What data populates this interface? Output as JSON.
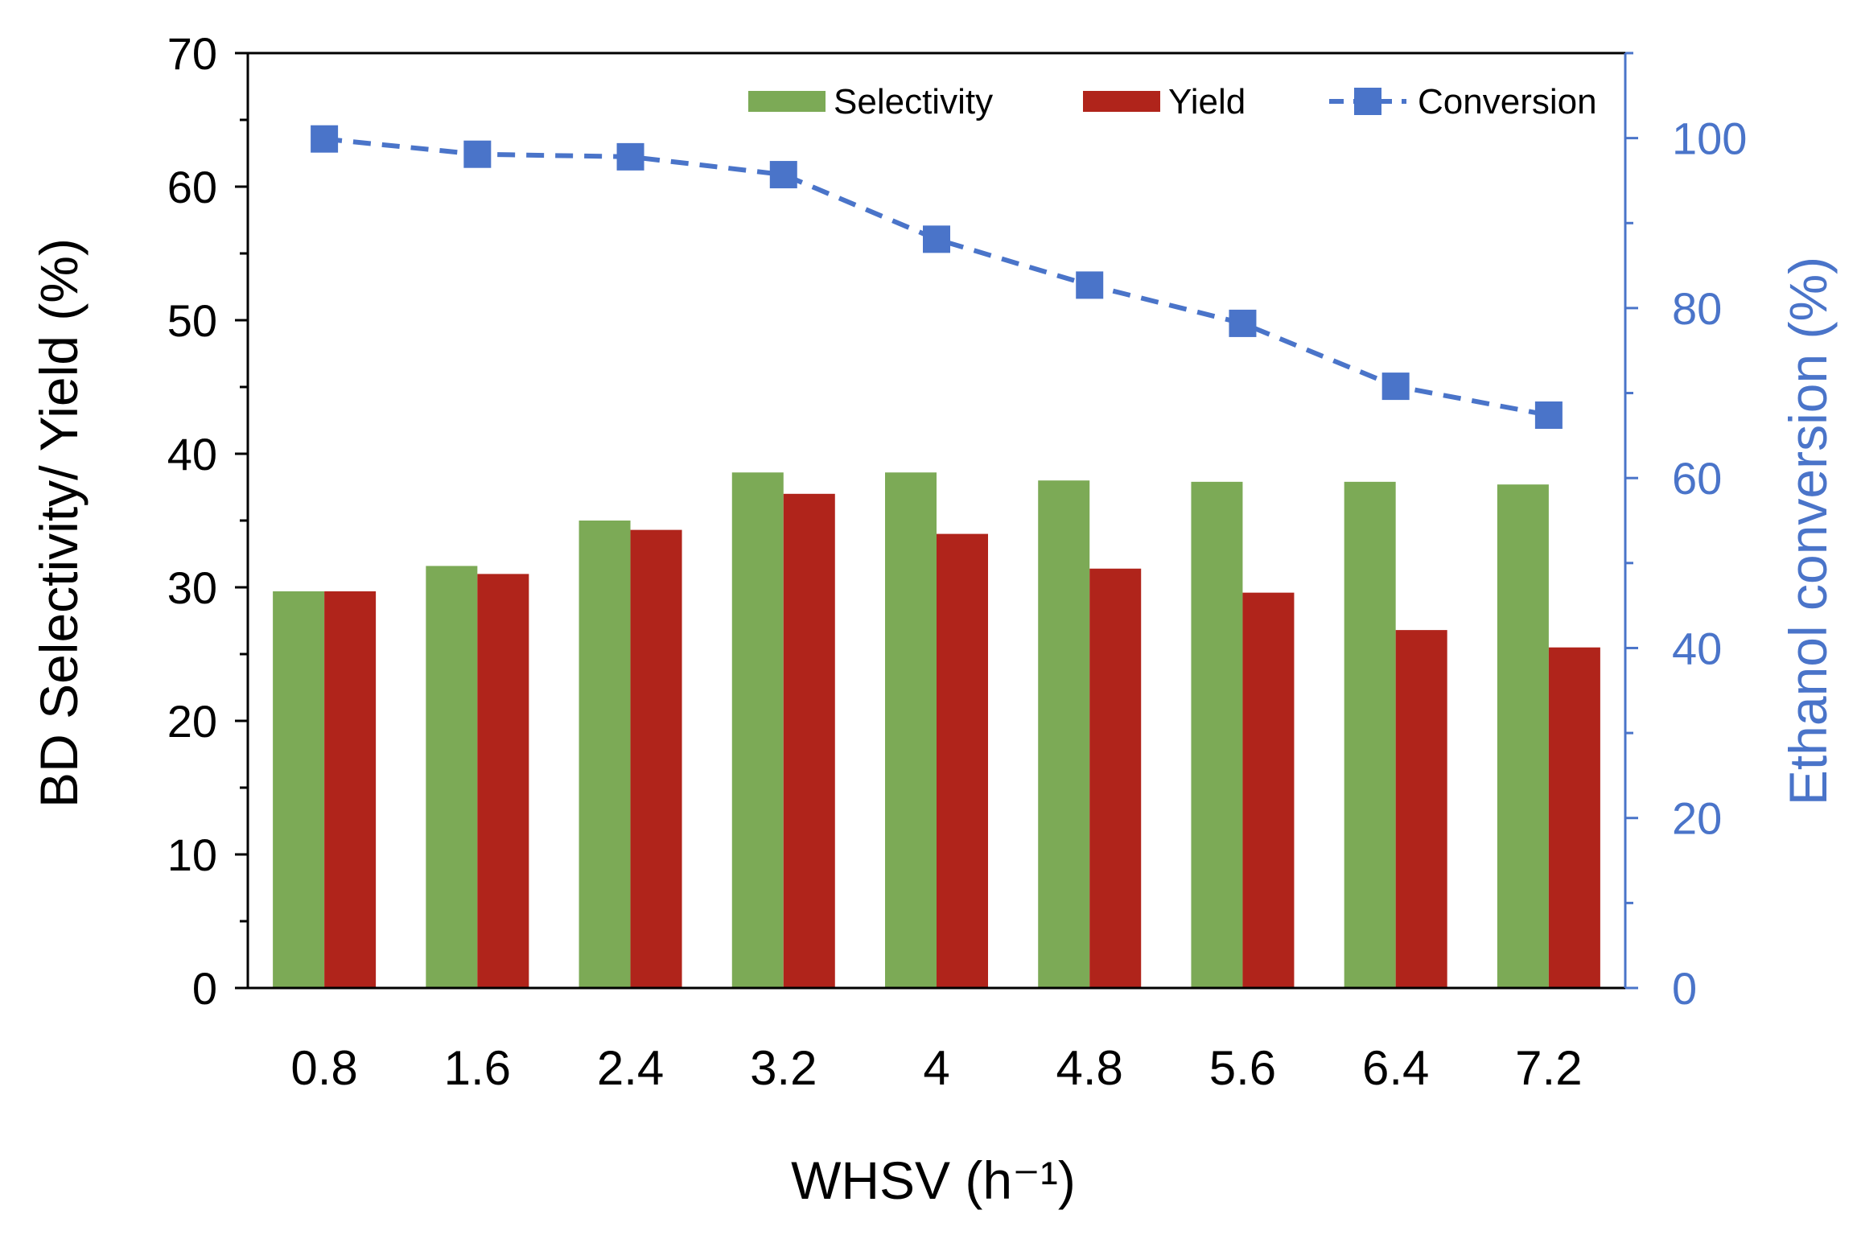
{
  "chart_data": {
    "type": "bar",
    "title": "",
    "categories": [
      "0.8",
      "1.6",
      "2.4",
      "3.2",
      "4",
      "4.8",
      "5.6",
      "6.4",
      "7.2"
    ],
    "xlabel": "WHSV (h⁻¹)",
    "ylabel": "BD Selectivity/ Yield (%)",
    "ylabel_right": "Ethanol conversion (%)",
    "ylim": [
      0,
      70
    ],
    "yticks": [
      0,
      10,
      20,
      30,
      40,
      50,
      60,
      70
    ],
    "ylim_right": [
      0,
      110
    ],
    "yticks_right": [
      0,
      20,
      40,
      60,
      80,
      100
    ],
    "grid": false,
    "legend_position": "top-right",
    "series": [
      {
        "name": "Selectivity",
        "kind": "bar",
        "axis": "left",
        "color": "#7caa56",
        "values": [
          29.7,
          31.6,
          35.0,
          38.6,
          38.6,
          38.0,
          37.9,
          37.9,
          37.7
        ]
      },
      {
        "name": "Yield",
        "kind": "bar",
        "axis": "left",
        "color": "#b0241b",
        "values": [
          29.7,
          31.0,
          34.3,
          37.0,
          34.0,
          31.4,
          29.6,
          26.8,
          25.5
        ]
      },
      {
        "name": "Conversion",
        "kind": "line",
        "axis": "right",
        "style": "dashed",
        "marker": "square",
        "color": "#4a74c9",
        "values": [
          99.9,
          98.1,
          97.8,
          95.7,
          88.1,
          82.7,
          78.2,
          70.8,
          67.4
        ]
      }
    ],
    "colors": {
      "axis_left": "#000000",
      "axis_right": "#4a74c9"
    }
  }
}
